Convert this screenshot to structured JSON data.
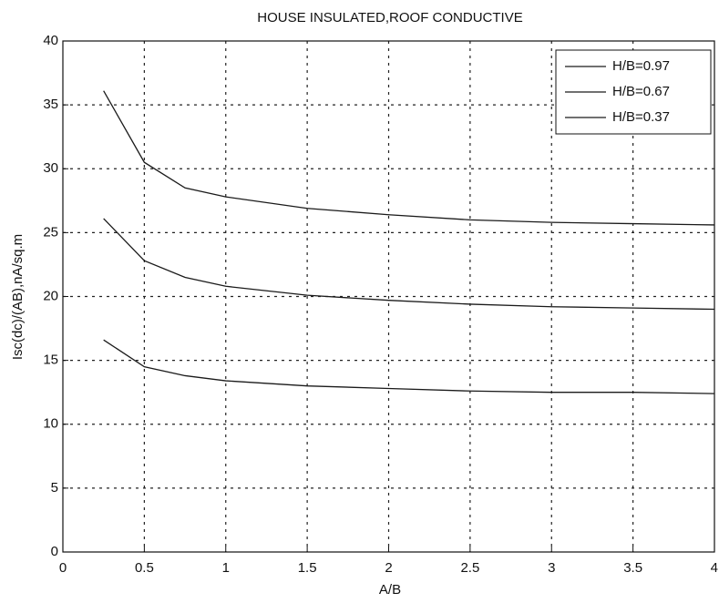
{
  "chart_data": {
    "type": "line",
    "title": "HOUSE INSULATED,ROOF CONDUCTIVE",
    "x_label": "A/B",
    "y_label": "Isc(dc)/(AB),nA/sq.m",
    "x": [
      0.25,
      0.5,
      0.75,
      1,
      1.5,
      2,
      2.5,
      3,
      3.5,
      4
    ],
    "series": [
      {
        "name": "H/B=0.97",
        "color": "#1a1a1a",
        "values": [
          36.1,
          30.5,
          28.5,
          27.8,
          26.9,
          26.4,
          26.0,
          25.8,
          25.7,
          25.6
        ]
      },
      {
        "name": "H/B=0.67",
        "color": "#1a1a1a",
        "values": [
          26.1,
          22.8,
          21.5,
          20.8,
          20.1,
          19.7,
          19.4,
          19.2,
          19.1,
          19.0
        ]
      },
      {
        "name": "H/B=0.37",
        "color": "#1a1a1a",
        "values": [
          16.6,
          14.5,
          13.8,
          13.4,
          13.0,
          12.8,
          12.6,
          12.5,
          12.5,
          12.4
        ]
      }
    ],
    "xlim": [
      0,
      4
    ],
    "xticks": [
      0,
      0.5,
      1,
      1.5,
      2,
      2.5,
      3,
      3.5,
      4
    ],
    "ylim": [
      0,
      40
    ],
    "yticks": [
      0,
      5,
      10,
      15,
      20,
      25,
      30,
      35,
      40
    ],
    "grid": true,
    "legend": "upper-right"
  }
}
